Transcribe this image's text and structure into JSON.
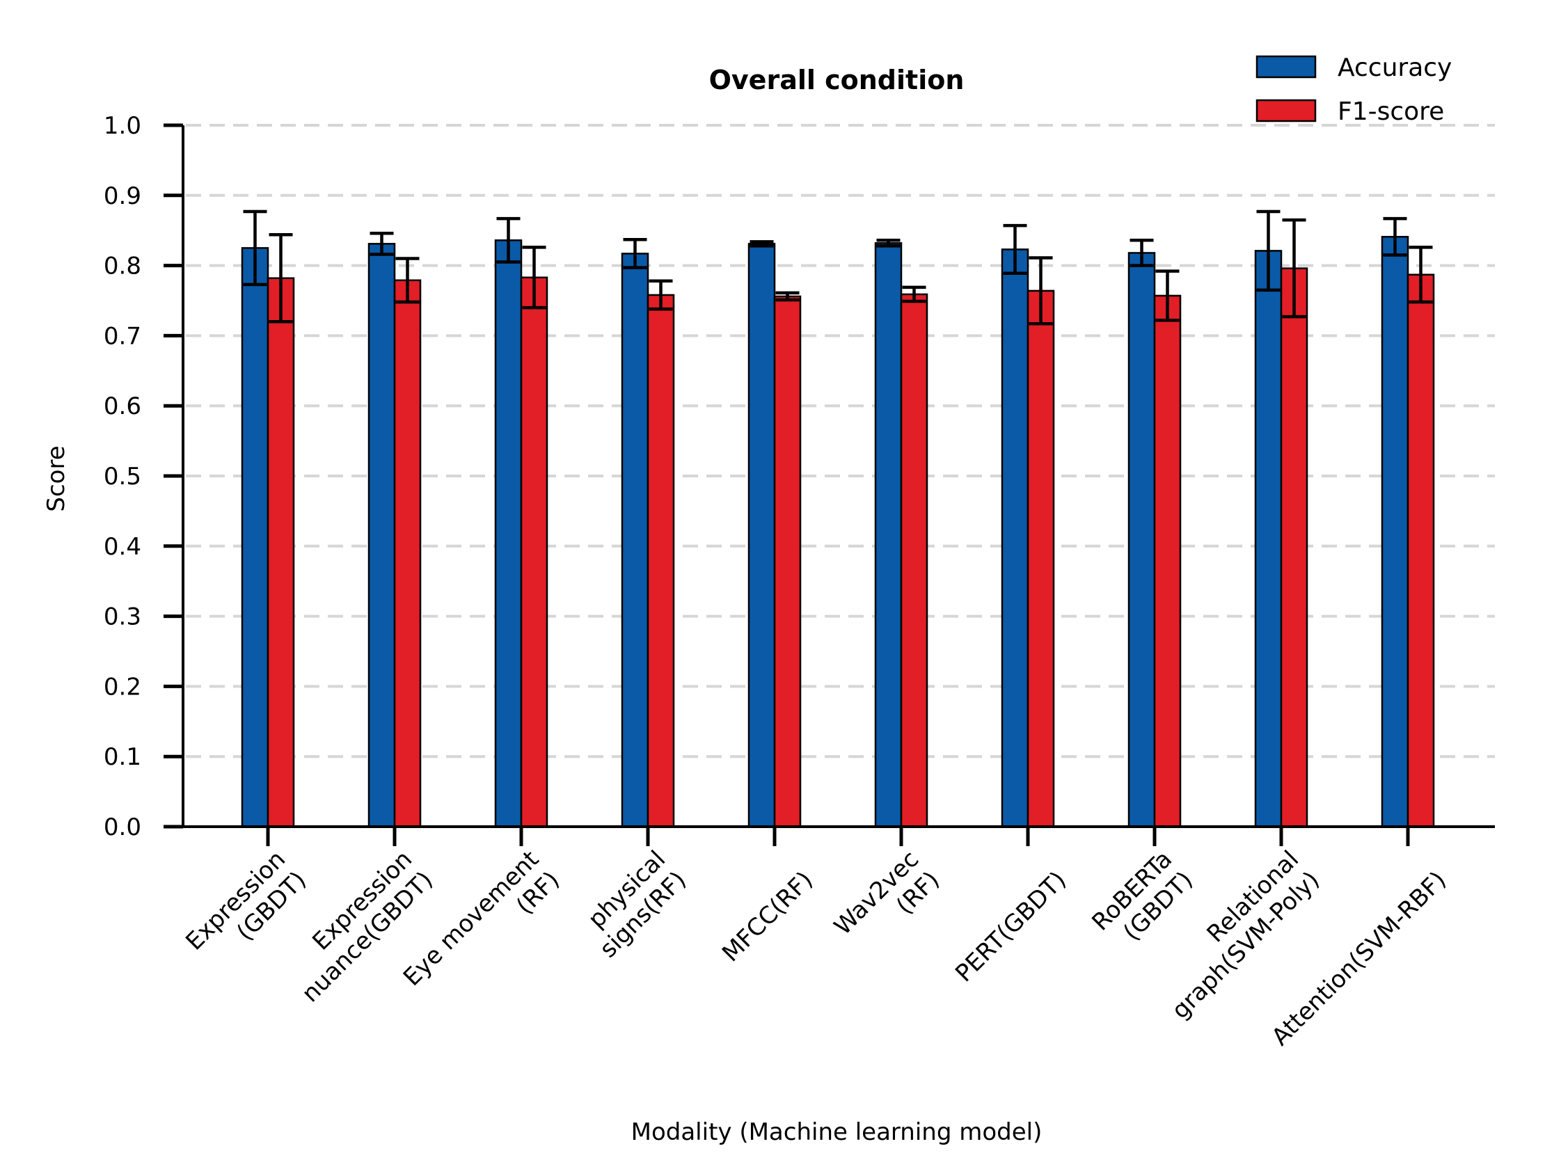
{
  "chart_data": {
    "type": "bar",
    "title": "Overall condition",
    "xlabel": "Modality (Machine learning model)",
    "ylabel": "Score",
    "ylim": [
      0,
      1.0
    ],
    "yticks": [
      "0.0",
      "0.1",
      "0.2",
      "0.3",
      "0.4",
      "0.5",
      "0.6",
      "0.7",
      "0.8",
      "0.9",
      "1.0"
    ],
    "grid": "horizontal dashed",
    "legend_position": "top-right",
    "categories": [
      [
        "Expression",
        "(GBDT)"
      ],
      [
        "Expression",
        "nuance(GBDT)"
      ],
      [
        "Eye movement",
        "(RF)"
      ],
      [
        "physical",
        "signs(RF)"
      ],
      [
        "MFCC(RF)"
      ],
      [
        "Wav2vec",
        "(RF)"
      ],
      [
        "PERT(GBDT)"
      ],
      [
        "RoBERTa",
        "(GBDT)"
      ],
      [
        "Relational",
        "graph(SVM-Poly)"
      ],
      [
        "Attention(SVM-RBF)"
      ]
    ],
    "series": [
      {
        "name": "Accuracy",
        "color": "#0a5aa8",
        "values": [
          0.825,
          0.831,
          0.836,
          0.817,
          0.831,
          0.832,
          0.823,
          0.818,
          0.821,
          0.841
        ],
        "errors": [
          0.052,
          0.015,
          0.031,
          0.02,
          0.003,
          0.004,
          0.034,
          0.018,
          0.056,
          0.026
        ]
      },
      {
        "name": "F1-score",
        "color": "#e21e26",
        "values": [
          0.782,
          0.779,
          0.783,
          0.758,
          0.756,
          0.759,
          0.764,
          0.757,
          0.796,
          0.787
        ],
        "errors": [
          0.062,
          0.031,
          0.043,
          0.02,
          0.005,
          0.01,
          0.047,
          0.035,
          0.069,
          0.039
        ]
      }
    ]
  }
}
